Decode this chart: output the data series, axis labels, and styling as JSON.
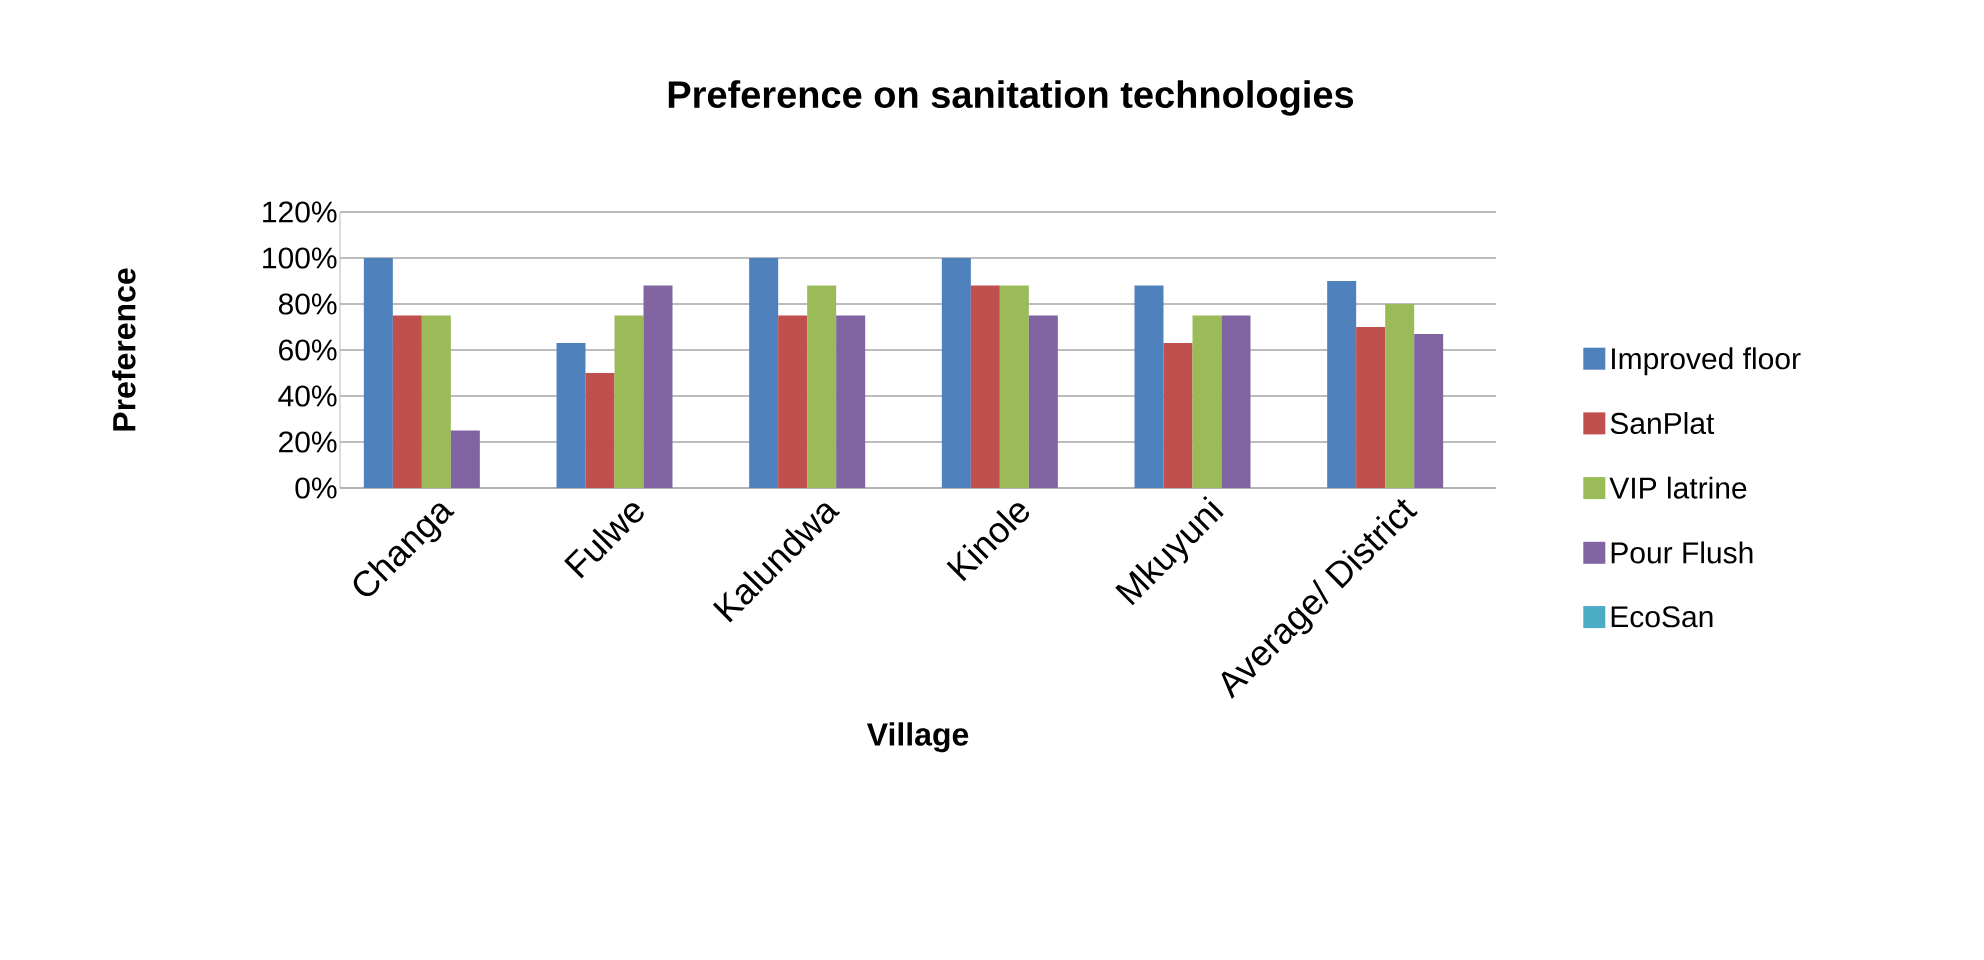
{
  "chart_data": {
    "type": "bar",
    "title": "Preference on sanitation technologies",
    "xlabel": "Village",
    "ylabel": "Preference",
    "categories": [
      "Changa",
      "Fulwe",
      "Kalundwa",
      "Kinole",
      "Mkuyuni",
      "Average/ District"
    ],
    "series": [
      {
        "name": "Improved floor",
        "color": "#4f81bd",
        "values": [
          100,
          63,
          100,
          100,
          88,
          90
        ]
      },
      {
        "name": "SanPlat",
        "color": "#c0504d",
        "values": [
          75,
          50,
          75,
          88,
          63,
          70
        ]
      },
      {
        "name": "VIP latrine",
        "color": "#9bbb59",
        "values": [
          75,
          75,
          88,
          88,
          75,
          80
        ]
      },
      {
        "name": "Pour Flush",
        "color": "#8064a2",
        "values": [
          25,
          88,
          75,
          75,
          75,
          67
        ]
      },
      {
        "name": "EcoSan",
        "color": "#4bacc6",
        "values": [
          0,
          0,
          0,
          0,
          0,
          0
        ]
      }
    ],
    "ylim": [
      0,
      120
    ],
    "yticks": [
      {
        "value": 0,
        "label": "0%"
      },
      {
        "value": 20,
        "label": "20%"
      },
      {
        "value": 40,
        "label": "40%"
      },
      {
        "value": 60,
        "label": "60%"
      },
      {
        "value": 80,
        "label": "80%"
      },
      {
        "value": 100,
        "label": "100%"
      },
      {
        "value": 120,
        "label": "120%"
      }
    ],
    "grid": "y",
    "legend": "right"
  }
}
